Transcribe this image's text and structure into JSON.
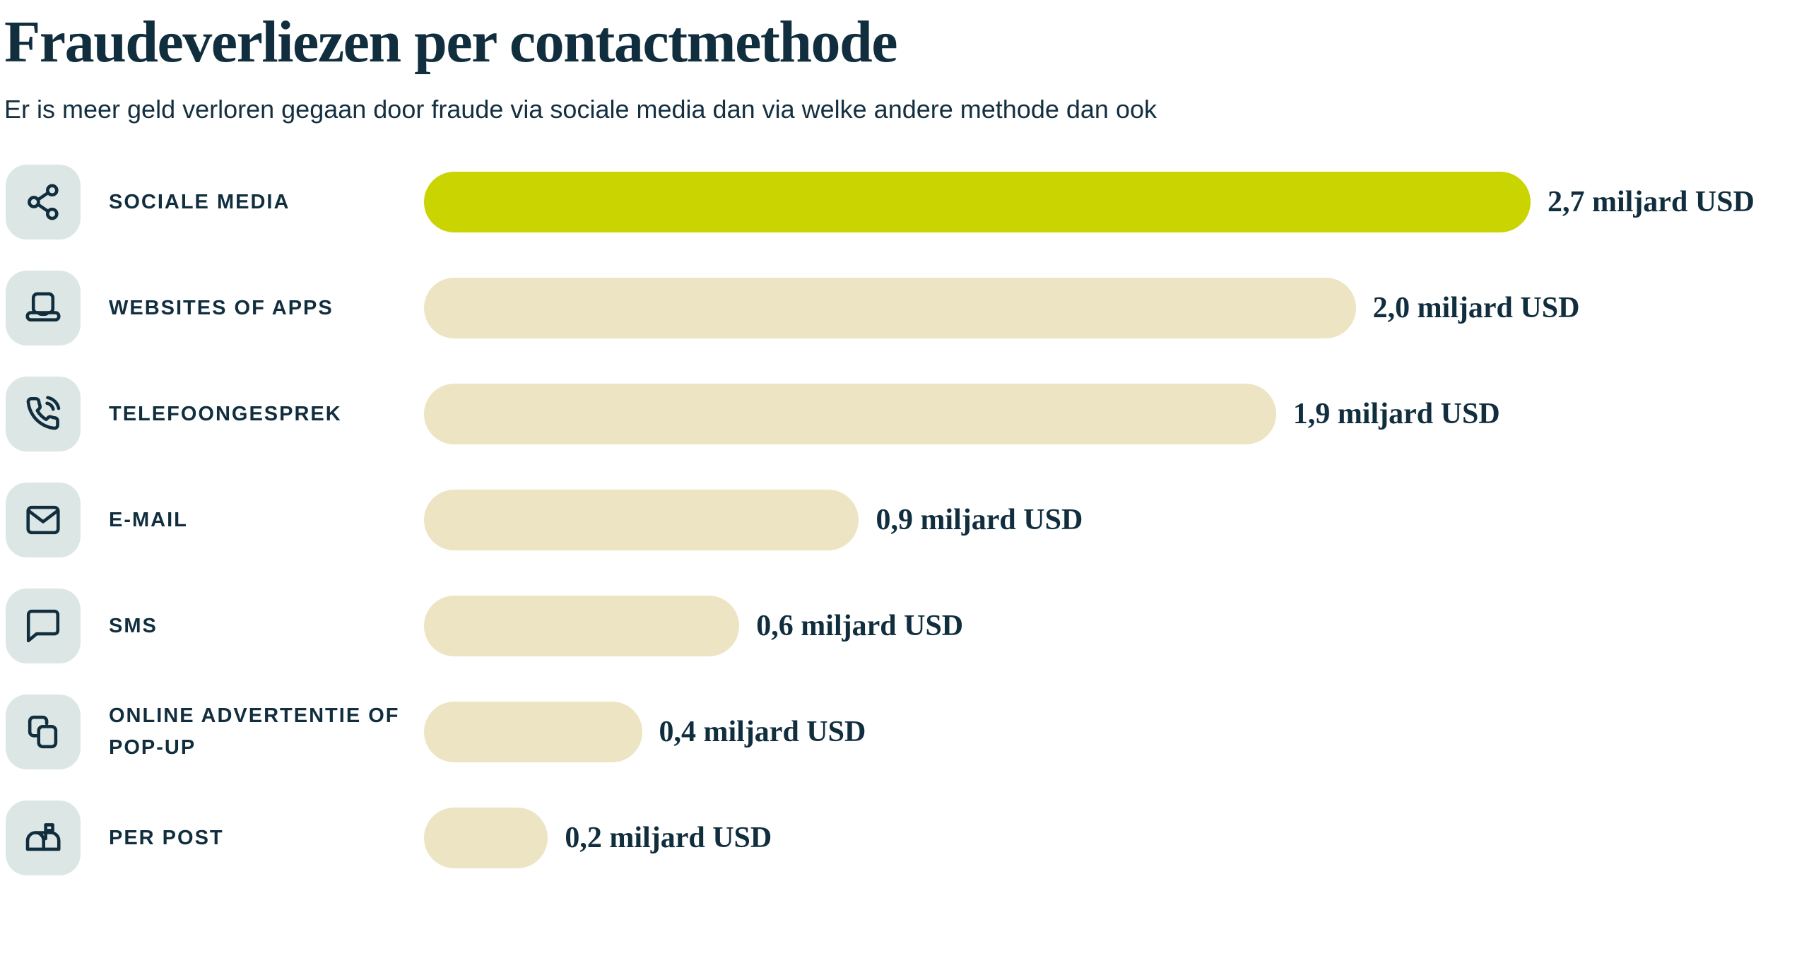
{
  "page": {
    "title": "Fraudeverliezen per contactmethode",
    "subtitle": "Er is meer geld verloren gegaan door fraude via sociale media dan via welke andere methode dan ook"
  },
  "colors": {
    "text_navy": "#112e3e",
    "highlight_bar_green": "#cad400",
    "default_bar_beige": "#ece4c2",
    "icon_tile_background": "#dce7e5",
    "page_background": "#ffffff"
  },
  "chart_data": {
    "type": "bar",
    "orientation": "horizontal",
    "title": "Fraudeverliezen per contactmethode",
    "subtitle": "Er is meer geld verloren gegaan door fraude via sociale media dan via welke andere methode dan ook",
    "unit": "miljard USD",
    "value_axis_visible": false,
    "grid": false,
    "legend": false,
    "categories": [
      "SOCIALE MEDIA",
      "WEBSITES OF APPS",
      "TELEFOONGESPREK",
      "E-MAIL",
      "SMS",
      "ONLINE ADVERTENTIE OF POP-UP",
      "PER POST"
    ],
    "values": [
      2.7,
      2.0,
      1.9,
      0.9,
      0.6,
      0.4,
      0.2
    ],
    "items": [
      {
        "label": "SOCIALE MEDIA",
        "icon": "share-icon",
        "value": 2.7,
        "value_label": "2,7 miljard USD",
        "highlight": true,
        "bar_width_pct": 100
      },
      {
        "label": "WEBSITES OF APPS",
        "icon": "laptop-icon",
        "value": 2.0,
        "value_label": "2,0 miljard USD",
        "highlight": false,
        "bar_width_pct": 84.2
      },
      {
        "label": "TELEFOONGESPREK",
        "icon": "phone-call-icon",
        "value": 1.9,
        "value_label": "1,9 miljard USD",
        "highlight": false,
        "bar_width_pct": 77.0
      },
      {
        "label": "E-MAIL",
        "icon": "mail-envelope-icon",
        "value": 0.9,
        "value_label": "0,9 miljard USD",
        "highlight": false,
        "bar_width_pct": 39.3
      },
      {
        "label": "SMS",
        "icon": "chat-bubble-icon",
        "value": 0.6,
        "value_label": "0,6 miljard USD",
        "highlight": false,
        "bar_width_pct": 28.5
      },
      {
        "label": "ONLINE ADVERTENTIE OF POP-UP",
        "icon": "overlapping-windows-icon",
        "value": 0.4,
        "value_label": "0,4 miljard USD",
        "highlight": false,
        "bar_width_pct": 19.7
      },
      {
        "label": "PER POST",
        "icon": "mailbox-icon",
        "value": 0.2,
        "value_label": "0,2 miljard USD",
        "highlight": false,
        "bar_width_pct": 11.2
      }
    ]
  }
}
